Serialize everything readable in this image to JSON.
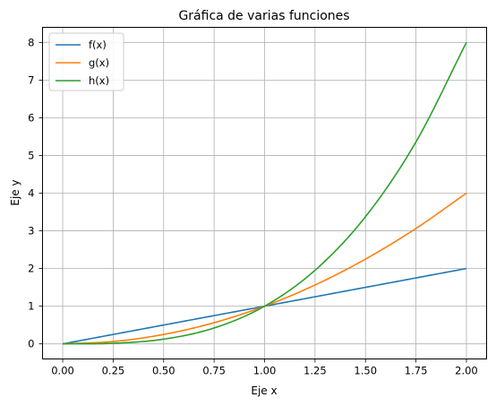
{
  "chart_data": {
    "type": "line",
    "title": "Gráfica de varias funciones",
    "xlabel": "Eje x",
    "ylabel": "Eje y",
    "xlim": [
      -0.1,
      2.1
    ],
    "ylim": [
      -0.4,
      8.4
    ],
    "xticks": [
      0.0,
      0.25,
      0.5,
      0.75,
      1.0,
      1.25,
      1.5,
      1.75,
      2.0
    ],
    "xtick_labels": [
      "0.00",
      "0.25",
      "0.50",
      "0.75",
      "1.00",
      "1.25",
      "1.50",
      "1.75",
      "2.00"
    ],
    "yticks": [
      0,
      1,
      2,
      3,
      4,
      5,
      6,
      7,
      8
    ],
    "ytick_labels": [
      "0",
      "1",
      "2",
      "3",
      "4",
      "5",
      "6",
      "7",
      "8"
    ],
    "grid": true,
    "legend_position": "top-left",
    "x": [
      0.0,
      0.25,
      0.5,
      0.75,
      1.0,
      1.25,
      1.5,
      1.75,
      2.0
    ],
    "series": [
      {
        "name": "f(x)",
        "color": "#1f77b4",
        "values": [
          0.0,
          0.25,
          0.5,
          0.75,
          1.0,
          1.25,
          1.5,
          1.75,
          2.0
        ]
      },
      {
        "name": "g(x)",
        "color": "#ff7f0e",
        "values": [
          0.0,
          0.0625,
          0.25,
          0.5625,
          1.0,
          1.5625,
          2.25,
          3.0625,
          4.0
        ]
      },
      {
        "name": "h(x)",
        "color": "#2ca02c",
        "values": [
          0.0,
          0.015625,
          0.125,
          0.421875,
          1.0,
          1.953125,
          3.375,
          5.359375,
          8.0
        ]
      }
    ]
  }
}
